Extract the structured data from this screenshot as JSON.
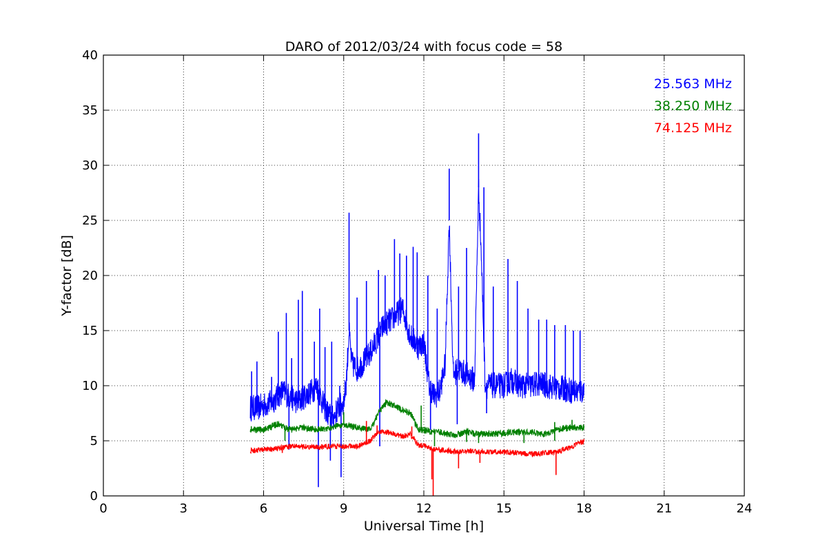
{
  "chart_data": {
    "type": "line",
    "title": "DARO of 2012/03/24 with focus code = 58",
    "xlabel": "Universal Time [h]",
    "ylabel": "Y-factor [dB]",
    "xlim": [
      0,
      24
    ],
    "ylim": [
      0,
      40
    ],
    "xticks": [
      "0",
      "3",
      "6",
      "9",
      "12",
      "15",
      "18",
      "21",
      "24"
    ],
    "yticks": [
      "0",
      "5",
      "10",
      "15",
      "20",
      "25",
      "30",
      "35",
      "40"
    ],
    "grid": true,
    "legend_position": "top-right",
    "series": [
      {
        "name": "25.563 MHz",
        "color": "#0000ff",
        "x": [
          5.5,
          5.8,
          6.0,
          6.3,
          6.5,
          6.7,
          7.0,
          7.3,
          7.5,
          7.8,
          8.0,
          8.2,
          8.4,
          8.6,
          8.8,
          9.0,
          9.1,
          9.2,
          9.3,
          9.5,
          9.7,
          10.0,
          10.3,
          10.5,
          10.8,
          11.0,
          11.2,
          11.5,
          11.8,
          12.0,
          12.2,
          12.4,
          12.6,
          12.8,
          12.95,
          13.1,
          13.3,
          13.6,
          13.9,
          14.05,
          14.15,
          14.3,
          14.5,
          14.8,
          15.0,
          15.3,
          15.6,
          16.0,
          16.3,
          16.6,
          17.0,
          17.3,
          17.6,
          18.0
        ],
        "y": [
          8.0,
          8.0,
          8.2,
          8.5,
          9.0,
          9.5,
          9.0,
          8.5,
          9.0,
          9.5,
          10.0,
          8.5,
          7.5,
          7.0,
          8.0,
          8.5,
          10.5,
          15.0,
          12.0,
          11.5,
          12.0,
          13.0,
          14.5,
          15.5,
          16.0,
          16.5,
          17.0,
          14.5,
          13.5,
          14.0,
          10.0,
          9.0,
          9.5,
          12.0,
          25.0,
          11.0,
          11.5,
          11.0,
          10.5,
          28.0,
          22.0,
          10.0,
          10.0,
          10.0,
          10.0,
          10.5,
          10.0,
          10.0,
          10.2,
          10.0,
          9.8,
          9.7,
          9.5,
          9.5
        ],
        "spikes": [
          [
            5.55,
            11.3
          ],
          [
            5.75,
            12.2
          ],
          [
            6.3,
            10.8
          ],
          [
            6.55,
            14.9
          ],
          [
            6.85,
            16.6
          ],
          [
            7.05,
            12.5
          ],
          [
            7.3,
            17.8
          ],
          [
            7.45,
            18.6
          ],
          [
            7.9,
            14.0
          ],
          [
            8.1,
            17.0
          ],
          [
            8.3,
            13.5
          ],
          [
            8.55,
            14.0
          ],
          [
            8.85,
            10.0
          ],
          [
            9.2,
            25.7
          ],
          [
            9.5,
            18.0
          ],
          [
            9.85,
            19.5
          ],
          [
            10.3,
            20.5
          ],
          [
            10.55,
            20.0
          ],
          [
            10.9,
            23.3
          ],
          [
            11.1,
            22.0
          ],
          [
            11.35,
            21.8
          ],
          [
            11.6,
            22.6
          ],
          [
            11.75,
            22.1
          ],
          [
            12.15,
            20.0
          ],
          [
            12.5,
            17.0
          ],
          [
            12.95,
            29.7
          ],
          [
            13.3,
            19.0
          ],
          [
            13.6,
            22.5
          ],
          [
            14.05,
            32.9
          ],
          [
            14.25,
            28.0
          ],
          [
            14.6,
            19.0
          ],
          [
            15.15,
            21.5
          ],
          [
            15.5,
            19.5
          ],
          [
            15.9,
            17.0
          ],
          [
            16.3,
            16.0
          ],
          [
            16.6,
            16.0
          ],
          [
            16.9,
            15.5
          ],
          [
            17.3,
            15.5
          ],
          [
            17.6,
            15.0
          ],
          [
            17.85,
            15.0
          ]
        ],
        "dips": [
          [
            6.95,
            4.2
          ],
          [
            8.05,
            0.8
          ],
          [
            8.5,
            3.2
          ],
          [
            8.9,
            1.7
          ],
          [
            10.35,
            4.5
          ],
          [
            12.25,
            6.0
          ],
          [
            13.25,
            6.5
          ],
          [
            14.35,
            7.5
          ]
        ]
      },
      {
        "name": "38.250 MHz",
        "color": "#008000",
        "x": [
          5.5,
          6.0,
          6.5,
          7.0,
          7.5,
          8.0,
          8.5,
          9.0,
          9.5,
          10.0,
          10.3,
          10.6,
          10.9,
          11.2,
          11.5,
          11.8,
          12.0,
          12.3,
          12.6,
          12.9,
          13.2,
          13.6,
          14.0,
          14.5,
          15.0,
          15.5,
          16.0,
          16.5,
          17.0,
          17.5,
          18.0
        ],
        "y": [
          6.0,
          6.0,
          6.5,
          6.0,
          6.2,
          6.0,
          6.2,
          6.5,
          6.2,
          6.0,
          7.5,
          8.5,
          8.2,
          7.8,
          7.5,
          6.0,
          6.0,
          5.8,
          5.8,
          5.6,
          5.5,
          5.8,
          5.6,
          5.6,
          5.7,
          5.8,
          5.8,
          5.6,
          6.0,
          6.2,
          6.2
        ],
        "spikes": [
          [
            9.0,
            7.6
          ],
          [
            11.9,
            8.2
          ],
          [
            16.9,
            6.7
          ],
          [
            17.55,
            6.9
          ]
        ],
        "dips": [
          [
            6.8,
            5.0
          ],
          [
            12.4,
            4.5
          ],
          [
            13.6,
            4.9
          ],
          [
            14.05,
            4.8
          ],
          [
            15.75,
            4.8
          ],
          [
            16.9,
            5.0
          ]
        ]
      },
      {
        "name": "74.125 MHz",
        "color": "#ff0000",
        "x": [
          5.5,
          6.0,
          6.5,
          7.0,
          7.5,
          8.0,
          8.5,
          9.0,
          9.5,
          10.0,
          10.3,
          10.6,
          10.9,
          11.2,
          11.5,
          11.8,
          12.0,
          12.3,
          12.6,
          12.9,
          13.2,
          13.6,
          14.0,
          14.5,
          15.0,
          15.5,
          16.0,
          16.5,
          17.0,
          17.5,
          18.0
        ],
        "y": [
          4.1,
          4.2,
          4.3,
          4.5,
          4.5,
          4.4,
          4.5,
          4.5,
          4.5,
          5.0,
          5.8,
          5.8,
          5.6,
          5.4,
          5.6,
          4.6,
          4.6,
          4.3,
          4.2,
          4.1,
          4.0,
          4.1,
          4.0,
          4.0,
          4.0,
          3.9,
          3.8,
          3.9,
          4.0,
          4.4,
          5.0
        ],
        "spikes": [
          [
            9.85,
            6.8
          ],
          [
            10.25,
            6.4
          ],
          [
            11.55,
            6.3
          ]
        ],
        "dips": [
          [
            6.7,
            3.9
          ],
          [
            12.3,
            1.5
          ],
          [
            12.35,
            0.0
          ],
          [
            13.3,
            2.5
          ],
          [
            14.1,
            3.0
          ],
          [
            15.8,
            3.6
          ],
          [
            16.95,
            1.9
          ]
        ]
      }
    ]
  }
}
